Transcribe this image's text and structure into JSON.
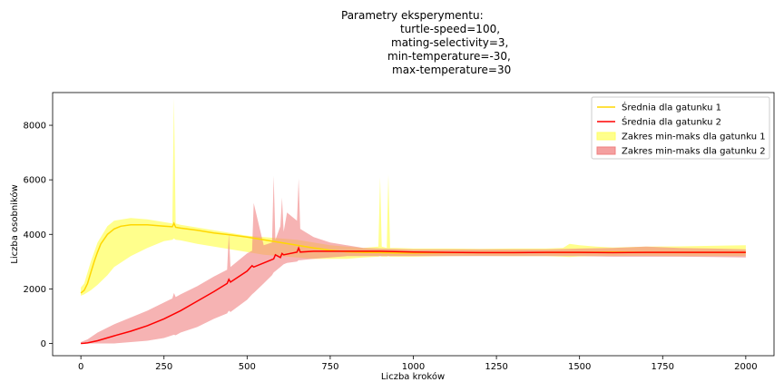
{
  "chart_data": {
    "type": "area",
    "title_lines": [
      "Parametry eksperymentu:",
      "turtle-speed=100,",
      "mating-selectivity=3,",
      "min-temperature=-30,",
      "max-temperature=30"
    ],
    "xlabel": "Liczba kroków",
    "ylabel": "Liczba osobników",
    "xlim": [
      -85,
      2085
    ],
    "ylim": [
      -450,
      9200
    ],
    "x_ticks": [
      0,
      250,
      500,
      750,
      1000,
      1250,
      1500,
      1750,
      2000
    ],
    "x_tick_labels": [
      "0",
      "250",
      "500",
      "750",
      "1000",
      "1250",
      "1500",
      "1750",
      "2000"
    ],
    "y_ticks": [
      0,
      2000,
      4000,
      6000,
      8000
    ],
    "y_tick_labels": [
      "0",
      "2000",
      "4000",
      "6000",
      "8000"
    ],
    "grid": false,
    "legend_position": "upper-right",
    "legend": [
      {
        "label": "Średnia dla gatunku 1",
        "kind": "line",
        "color": "#FFD700"
      },
      {
        "label": "Średnia dla gatunku 2",
        "kind": "line",
        "color": "#FF0000"
      },
      {
        "label": "Zakres min-maks dla gatunku 1",
        "kind": "patch",
        "color": "#FFFF66"
      },
      {
        "label": "Zakres min-maks dla gatunku 2",
        "kind": "patch",
        "color": "#F08080"
      }
    ],
    "series": [
      {
        "name": "Średnia dla gatunku 1",
        "color": "#FFD700",
        "x": [
          0,
          10,
          20,
          30,
          40,
          50,
          60,
          80,
          100,
          120,
          150,
          200,
          250,
          275,
          280,
          285,
          300,
          350,
          400,
          450,
          500,
          550,
          600,
          650,
          700,
          750,
          800,
          850,
          900,
          950,
          1000,
          1100,
          1200,
          1300,
          1400,
          1500,
          1600,
          1700,
          1800,
          1900,
          2000
        ],
        "values": [
          1850,
          1950,
          2200,
          2600,
          3000,
          3350,
          3650,
          4000,
          4200,
          4300,
          4350,
          4350,
          4300,
          4280,
          4400,
          4260,
          4230,
          4150,
          4050,
          3980,
          3900,
          3800,
          3700,
          3600,
          3500,
          3420,
          3360,
          3340,
          3330,
          3320,
          3320,
          3330,
          3330,
          3330,
          3340,
          3340,
          3350,
          3340,
          3340,
          3340,
          3340
        ]
      },
      {
        "name": "Średnia dla gatunku 2",
        "color": "#FF0000",
        "x": [
          0,
          10,
          20,
          50,
          100,
          150,
          200,
          250,
          300,
          350,
          400,
          440,
          445,
          450,
          500,
          515,
          520,
          550,
          580,
          585,
          600,
          605,
          610,
          650,
          655,
          660,
          700,
          750,
          800,
          900,
          1000,
          1100,
          1200,
          1300,
          1400,
          1500,
          1600,
          1700,
          1800,
          1900,
          2000
        ],
        "values": [
          0,
          5,
          20,
          100,
          280,
          450,
          650,
          900,
          1200,
          1550,
          1900,
          2200,
          2350,
          2250,
          2650,
          2850,
          2800,
          2950,
          3100,
          3250,
          3150,
          3300,
          3250,
          3350,
          3500,
          3350,
          3380,
          3380,
          3380,
          3380,
          3350,
          3340,
          3330,
          3330,
          3340,
          3340,
          3330,
          3340,
          3340,
          3340,
          3340
        ]
      }
    ],
    "bands": [
      {
        "name": "Zakres min-maks dla gatunku 1",
        "color": "#FFFF66",
        "x": [
          0,
          10,
          30,
          50,
          80,
          100,
          150,
          200,
          250,
          275,
          280,
          285,
          300,
          350,
          400,
          450,
          500,
          550,
          600,
          650,
          700,
          750,
          800,
          850,
          895,
          900,
          905,
          920,
          925,
          930,
          950,
          1000,
          1100,
          1200,
          1300,
          1400,
          1450,
          1470,
          1500,
          1550,
          1600,
          1700,
          1800,
          1900,
          2000
        ],
        "max": [
          2050,
          2200,
          3000,
          3700,
          4300,
          4500,
          4600,
          4550,
          4450,
          4400,
          9000,
          4400,
          4350,
          4250,
          4150,
          4050,
          3950,
          3900,
          3850,
          3800,
          3700,
          3600,
          3550,
          3500,
          3550,
          6100,
          3550,
          3500,
          6200,
          3500,
          3500,
          3480,
          3480,
          3470,
          3480,
          3480,
          3500,
          3650,
          3600,
          3550,
          3520,
          3550,
          3560,
          3580,
          3600
        ],
        "min": [
          1750,
          1800,
          1950,
          2150,
          2500,
          2800,
          3200,
          3500,
          3750,
          3800,
          3850,
          3800,
          3780,
          3650,
          3550,
          3450,
          3350,
          3250,
          3200,
          3150,
          3100,
          3100,
          3100,
          3150,
          3180,
          3200,
          3180,
          3180,
          3200,
          3180,
          3180,
          3180,
          3200,
          3210,
          3200,
          3200,
          3180,
          3170,
          3190,
          3200,
          3210,
          3210,
          3200,
          3200,
          3200
        ]
      },
      {
        "name": "Zakres min-maks dla gatunku 2",
        "color": "#F08080",
        "x": [
          0,
          20,
          50,
          100,
          150,
          200,
          250,
          275,
          280,
          285,
          300,
          350,
          400,
          440,
          445,
          450,
          500,
          515,
          520,
          550,
          575,
          580,
          585,
          600,
          605,
          610,
          620,
          650,
          655,
          660,
          700,
          750,
          800,
          850,
          900,
          1000,
          1100,
          1200,
          1300,
          1400,
          1500,
          1600,
          1700,
          1800,
          1900,
          2000
        ],
        "max": [
          50,
          150,
          400,
          700,
          950,
          1200,
          1500,
          1650,
          1850,
          1700,
          1800,
          2100,
          2450,
          2700,
          4050,
          2800,
          3300,
          3400,
          5150,
          3600,
          3700,
          6150,
          3800,
          4300,
          5350,
          4100,
          4800,
          4500,
          6050,
          4200,
          3900,
          3700,
          3600,
          3500,
          3480,
          3450,
          3450,
          3450,
          3450,
          3450,
          3480,
          3500,
          3550,
          3500,
          3480,
          3450
        ],
        "min": [
          0,
          0,
          0,
          0,
          50,
          100,
          200,
          300,
          320,
          300,
          400,
          600,
          900,
          1100,
          1200,
          1150,
          1600,
          1800,
          1850,
          2200,
          2500,
          2600,
          2650,
          2800,
          2850,
          2900,
          2950,
          3000,
          3050,
          3050,
          3100,
          3150,
          3200,
          3200,
          3200,
          3200,
          3200,
          3200,
          3200,
          3200,
          3200,
          3180,
          3180,
          3180,
          3170,
          3150
        ]
      }
    ]
  }
}
